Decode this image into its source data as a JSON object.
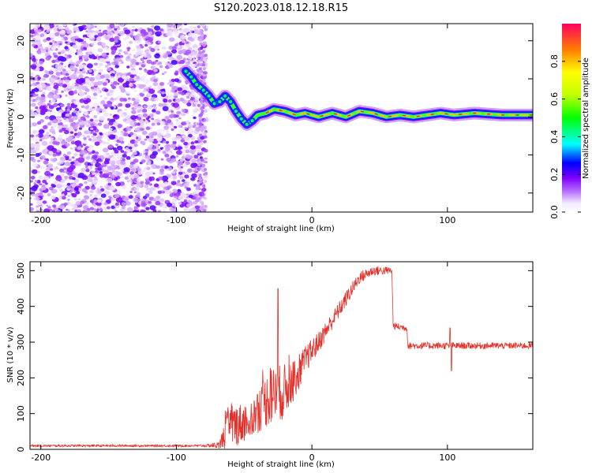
{
  "title": "S120.2023.018.12.18.R15",
  "chart_data": [
    {
      "type": "heatmap",
      "name": "spectrogram",
      "xlabel": "Height of straight line (km)",
      "ylabel": "Frequency (Hz)",
      "xlim": [
        -208,
        163
      ],
      "ylim": [
        -25,
        24.5
      ],
      "xticks": [
        -200,
        -100,
        0,
        100
      ],
      "yticks": [
        -20,
        -10,
        0,
        10,
        20
      ],
      "noise_region_x": [
        -208,
        -78
      ],
      "ridge": [
        {
          "x": -93,
          "y": 12
        },
        {
          "x": -89,
          "y": 10.5
        },
        {
          "x": -85,
          "y": 8.5
        },
        {
          "x": -80,
          "y": 7
        },
        {
          "x": -76,
          "y": 5.5
        },
        {
          "x": -72,
          "y": 3.5
        },
        {
          "x": -68,
          "y": 4
        },
        {
          "x": -64,
          "y": 5.5
        },
        {
          "x": -60,
          "y": 4
        },
        {
          "x": -56,
          "y": 1.5
        },
        {
          "x": -52,
          "y": -0.5
        },
        {
          "x": -48,
          "y": -2
        },
        {
          "x": -44,
          "y": -1
        },
        {
          "x": -40,
          "y": 0.5
        },
        {
          "x": -34,
          "y": 1
        },
        {
          "x": -28,
          "y": 2
        },
        {
          "x": -20,
          "y": 1.5
        },
        {
          "x": -12,
          "y": 0.5
        },
        {
          "x": -5,
          "y": 1
        },
        {
          "x": 5,
          "y": 0
        },
        {
          "x": 15,
          "y": 1
        },
        {
          "x": 25,
          "y": 0
        },
        {
          "x": 35,
          "y": 1.5
        },
        {
          "x": 45,
          "y": 1
        },
        {
          "x": 55,
          "y": 0
        },
        {
          "x": 65,
          "y": 0.5
        },
        {
          "x": 75,
          "y": 0
        },
        {
          "x": 85,
          "y": 0.5
        },
        {
          "x": 95,
          "y": 1
        },
        {
          "x": 105,
          "y": 0.5
        },
        {
          "x": 120,
          "y": 1
        },
        {
          "x": 140,
          "y": 0.5
        },
        {
          "x": 163,
          "y": 0.5
        }
      ],
      "colorbar": {
        "label": "Normalized spectral amplitude",
        "range": [
          0,
          1
        ],
        "ticks": [
          "0.0",
          "0.2",
          "0.4",
          "0.6",
          "0.8"
        ],
        "stops": [
          {
            "v": 0.0,
            "color": "#ffffff"
          },
          {
            "v": 0.05,
            "color": "#f0e6ff"
          },
          {
            "v": 0.1,
            "color": "#c080ff"
          },
          {
            "v": 0.18,
            "color": "#8000ff"
          },
          {
            "v": 0.26,
            "color": "#0000ff"
          },
          {
            "v": 0.36,
            "color": "#00ffff"
          },
          {
            "v": 0.5,
            "color": "#00ff00"
          },
          {
            "v": 0.62,
            "color": "#c0ff00"
          },
          {
            "v": 0.74,
            "color": "#ffff00"
          },
          {
            "v": 0.86,
            "color": "#ff8000"
          },
          {
            "v": 1.0,
            "color": "#ff0060"
          }
        ]
      }
    },
    {
      "type": "line",
      "name": "snr",
      "xlabel": "Height of straight line (km)",
      "ylabel": "SNR (10 * v/v)",
      "xlim": [
        -208,
        163
      ],
      "ylim": [
        0,
        525
      ],
      "xticks": [
        -200,
        -100,
        0,
        100
      ],
      "yticks": [
        0,
        100,
        200,
        300,
        400,
        500
      ],
      "color": "#e8302a",
      "envelope": [
        {
          "x": -208,
          "y": 10,
          "amp": 3
        },
        {
          "x": -80,
          "y": 10,
          "amp": 3
        },
        {
          "x": -68,
          "y": 12,
          "amp": 10
        },
        {
          "x": -62,
          "y": 60,
          "amp": 60
        },
        {
          "x": -55,
          "y": 70,
          "amp": 60
        },
        {
          "x": -45,
          "y": 80,
          "amp": 50
        },
        {
          "x": -38,
          "y": 120,
          "amp": 70
        },
        {
          "x": -30,
          "y": 150,
          "amp": 80
        },
        {
          "x": -22,
          "y": 160,
          "amp": 80
        },
        {
          "x": -15,
          "y": 180,
          "amp": 60
        },
        {
          "x": -5,
          "y": 250,
          "amp": 40
        },
        {
          "x": 5,
          "y": 300,
          "amp": 30
        },
        {
          "x": 15,
          "y": 360,
          "amp": 25
        },
        {
          "x": 25,
          "y": 420,
          "amp": 22
        },
        {
          "x": 35,
          "y": 480,
          "amp": 18
        },
        {
          "x": 45,
          "y": 500,
          "amp": 14
        },
        {
          "x": 55,
          "y": 500,
          "amp": 12
        },
        {
          "x": 59,
          "y": 500,
          "amp": 10
        },
        {
          "x": 60,
          "y": 345,
          "amp": 10
        },
        {
          "x": 70,
          "y": 340,
          "amp": 10
        },
        {
          "x": 71,
          "y": 290,
          "amp": 10
        },
        {
          "x": 163,
          "y": 290,
          "amp": 9
        }
      ],
      "spikes": [
        {
          "x": -25,
          "y": 450
        },
        {
          "x": 102,
          "y": 340
        },
        {
          "x": 103,
          "y": 220
        }
      ]
    }
  ]
}
